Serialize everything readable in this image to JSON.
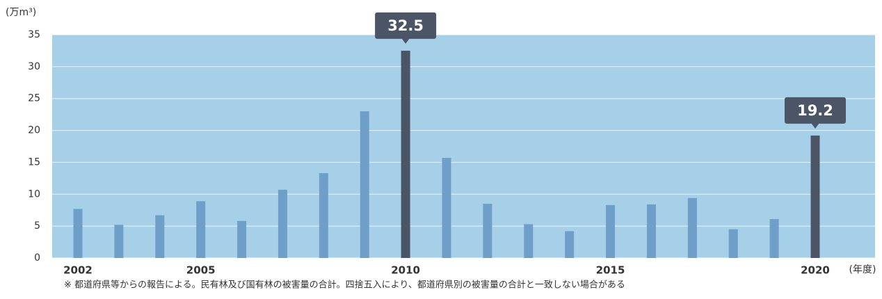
{
  "chart_data": {
    "type": "bar",
    "unit_label": "(万m³)",
    "x_unit_label": "(年度)",
    "footnote": "※ 都道府県等からの報告による。民有林及び国有林の被害量の合計。四捨五入により、都道府県別の被害量の合計と一致しない場合がある",
    "categories": [
      "2002",
      null,
      null,
      "2005",
      null,
      null,
      null,
      null,
      "2010",
      null,
      null,
      null,
      null,
      "2015",
      null,
      null,
      null,
      null,
      "2020"
    ],
    "values": [
      7.7,
      5.2,
      6.7,
      8.9,
      5.8,
      10.7,
      13.3,
      23.0,
      32.5,
      15.7,
      8.5,
      5.3,
      4.2,
      8.3,
      8.4,
      9.4,
      4.5,
      6.1,
      19.2
    ],
    "highlighted": [
      false,
      false,
      false,
      false,
      false,
      false,
      false,
      false,
      true,
      false,
      false,
      false,
      false,
      false,
      false,
      false,
      false,
      false,
      true
    ],
    "color": "#6f9fc8",
    "highlight_color": "#4b5566",
    "background_color": "#a6d0e8",
    "ylim": [
      0,
      35
    ],
    "yticks": [
      0,
      5,
      10,
      15,
      20,
      25,
      30,
      35
    ],
    "grid": true
  }
}
